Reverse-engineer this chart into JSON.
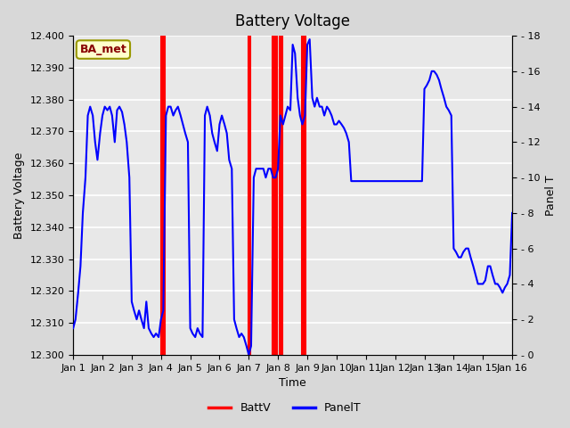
{
  "title": "Battery Voltage",
  "xlabel": "Time",
  "ylabel_left": "Battery Voltage",
  "ylabel_right": "Panel T",
  "xlim": [
    0,
    15
  ],
  "ylim_left": [
    12.3,
    12.4
  ],
  "ylim_right": [
    0,
    18
  ],
  "xtick_labels": [
    "Jan 1",
    "Jan 2",
    "Jan 3",
    "Jan 4",
    "Jan 5",
    "Jan 6",
    "Jan 7",
    "Jan 8",
    "Jan 9",
    "Jan 10",
    "Jan 11",
    "Jan 12",
    "Jan 13",
    "Jan 14",
    "Jan 15",
    "Jan 16"
  ],
  "xtick_positions": [
    0,
    1,
    2,
    3,
    4,
    5,
    6,
    7,
    8,
    9,
    10,
    11,
    12,
    13,
    14,
    15
  ],
  "ytick_left": [
    12.3,
    12.31,
    12.32,
    12.33,
    12.34,
    12.35,
    12.36,
    12.37,
    12.38,
    12.39,
    12.4
  ],
  "ytick_right": [
    0,
    2,
    4,
    6,
    8,
    10,
    12,
    14,
    16,
    18
  ],
  "bg_color": "#d8d8d8",
  "plot_bg_color": "#e8e8e8",
  "grid_color": "white",
  "batt_color": "red",
  "panel_color": "blue",
  "label_box_facecolor": "#ffffcc",
  "label_box_edgecolor": "#999900",
  "label_box_text": "BA_met",
  "label_box_textcolor": "#880000",
  "red_bands": [
    [
      3.0,
      3.12
    ],
    [
      6.0,
      6.05
    ],
    [
      6.82,
      6.95
    ],
    [
      7.05,
      7.15
    ],
    [
      7.82,
      7.95
    ]
  ],
  "panelt_x": [
    0.0,
    0.08,
    0.17,
    0.25,
    0.33,
    0.42,
    0.5,
    0.58,
    0.67,
    0.75,
    0.83,
    0.92,
    1.0,
    1.08,
    1.17,
    1.25,
    1.33,
    1.42,
    1.5,
    1.58,
    1.67,
    1.75,
    1.83,
    1.92,
    2.0,
    2.08,
    2.17,
    2.25,
    2.33,
    2.42,
    2.5,
    2.58,
    2.67,
    2.75,
    2.83,
    2.92,
    3.0,
    3.08,
    3.17,
    3.25,
    3.33,
    3.42,
    3.5,
    3.58,
    3.67,
    3.75,
    3.83,
    3.92,
    4.0,
    4.08,
    4.17,
    4.25,
    4.33,
    4.42,
    4.5,
    4.58,
    4.67,
    4.75,
    4.83,
    4.92,
    5.0,
    5.08,
    5.17,
    5.25,
    5.33,
    5.42,
    5.5,
    5.58,
    5.67,
    5.75,
    5.83,
    5.92,
    6.0,
    6.08,
    6.17,
    6.25,
    6.33,
    6.42,
    6.5,
    6.58,
    6.67,
    6.75,
    6.83,
    6.92,
    7.0,
    7.08,
    7.17,
    7.25,
    7.33,
    7.42,
    7.5,
    7.58,
    7.67,
    7.75,
    7.83,
    7.92,
    8.0,
    8.08,
    8.17,
    8.25,
    8.33,
    8.42,
    8.5,
    8.58,
    8.67,
    8.75,
    8.83,
    8.92,
    9.0,
    9.08,
    9.17,
    9.25,
    9.33,
    9.42,
    9.5,
    9.58,
    9.67,
    9.75,
    9.83,
    9.92,
    10.0,
    10.08,
    10.17,
    10.25,
    10.33,
    10.42,
    10.5,
    10.58,
    10.67,
    10.75,
    10.83,
    10.92,
    11.0,
    11.08,
    11.17,
    11.25,
    11.33,
    11.42,
    11.5,
    11.58,
    11.67,
    11.75,
    11.83,
    11.92,
    12.0,
    12.08,
    12.17,
    12.25,
    12.33,
    12.42,
    12.5,
    12.58,
    12.67,
    12.75,
    12.83,
    12.92,
    13.0,
    13.08,
    13.17,
    13.25,
    13.33,
    13.42,
    13.5,
    13.58,
    13.67,
    13.75,
    13.83,
    13.92,
    14.0,
    14.08,
    14.17,
    14.25,
    14.33,
    14.42,
    14.5,
    14.58,
    14.67,
    14.75,
    14.83,
    14.92,
    15.0
  ],
  "panelt_y": [
    1.5,
    2.0,
    3.5,
    5.0,
    8.0,
    10.0,
    13.5,
    14.0,
    13.5,
    12.0,
    11.0,
    12.5,
    13.5,
    14.0,
    13.8,
    14.0,
    13.5,
    12.0,
    13.8,
    14.0,
    13.7,
    13.0,
    12.0,
    10.0,
    3.0,
    2.5,
    2.0,
    2.5,
    2.0,
    1.5,
    3.0,
    1.5,
    1.2,
    1.0,
    1.2,
    1.0,
    2.0,
    2.5,
    13.5,
    14.0,
    14.0,
    13.5,
    13.8,
    14.0,
    13.5,
    13.0,
    12.5,
    12.0,
    1.5,
    1.2,
    1.0,
    1.5,
    1.2,
    1.0,
    13.5,
    14.0,
    13.5,
    12.5,
    12.0,
    11.5,
    13.0,
    13.5,
    13.0,
    12.5,
    11.0,
    10.5,
    2.0,
    1.5,
    1.0,
    1.2,
    1.0,
    0.5,
    0.0,
    0.5,
    10.0,
    10.5,
    10.5,
    10.5,
    10.5,
    10.0,
    10.5,
    10.5,
    10.0,
    10.0,
    10.5,
    13.5,
    13.0,
    13.5,
    14.0,
    13.8,
    17.5,
    17.0,
    14.5,
    13.5,
    13.0,
    13.5,
    17.5,
    17.8,
    14.5,
    14.0,
    14.5,
    14.0,
    14.0,
    13.5,
    14.0,
    13.8,
    13.5,
    13.0,
    13.0,
    13.2,
    13.0,
    12.8,
    12.5,
    12.0,
    9.8,
    9.8,
    9.8,
    9.8,
    9.8,
    9.8,
    9.8,
    9.8,
    9.8,
    9.8,
    9.8,
    9.8,
    9.8,
    9.8,
    9.8,
    9.8,
    9.8,
    9.8,
    9.8,
    9.8,
    9.8,
    9.8,
    9.8,
    9.8,
    9.8,
    9.8,
    9.8,
    9.8,
    9.8,
    9.8,
    15.0,
    15.2,
    15.5,
    16.0,
    16.0,
    15.8,
    15.5,
    15.0,
    14.5,
    14.0,
    13.8,
    13.5,
    6.0,
    5.8,
    5.5,
    5.5,
    5.8,
    6.0,
    6.0,
    5.5,
    5.0,
    4.5,
    4.0,
    4.0,
    4.0,
    4.2,
    5.0,
    5.0,
    4.5,
    4.0,
    4.0,
    3.8,
    3.5,
    3.8,
    4.0,
    4.5,
    8.0
  ]
}
